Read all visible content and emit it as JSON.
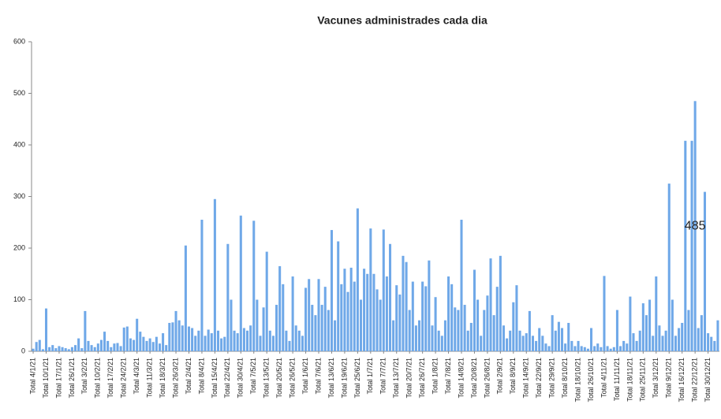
{
  "chart_data": {
    "type": "bar",
    "title": "Vacunes administrades cada dia",
    "categories": [
      "Total 4/1/21",
      null,
      null,
      null,
      "Total 10/1/21",
      null,
      null,
      null,
      "Total 17/1/21",
      null,
      null,
      null,
      "Total 26/1/21",
      null,
      null,
      null,
      "Total 3/2/21",
      null,
      null,
      null,
      "Total 10/2/21",
      null,
      null,
      null,
      "Total 17/2/21",
      null,
      null,
      null,
      "Total 24/2/21",
      null,
      null,
      null,
      "Total 4/3/21",
      null,
      null,
      null,
      "Total 11/3/21",
      null,
      null,
      null,
      "Total 18/3/21",
      null,
      null,
      null,
      "Total 26/3/21",
      null,
      null,
      null,
      "Total 2/4/21",
      null,
      null,
      null,
      "Total 8/4/21",
      null,
      null,
      null,
      "Total 15/4/21",
      null,
      null,
      null,
      "Total 22/4/21",
      null,
      null,
      null,
      "Total 30/4/21",
      null,
      null,
      null,
      "Total 7/5/21",
      null,
      null,
      null,
      "Total 13/5/21",
      null,
      null,
      null,
      "Total 20/5/21",
      null,
      null,
      null,
      "Total 26/5/21",
      null,
      null,
      null,
      "Total 1/6/21",
      null,
      null,
      null,
      "Total 7/6/21",
      null,
      null,
      null,
      "Total 13/6/21",
      null,
      null,
      null,
      "Total 19/6/21",
      null,
      null,
      null,
      "Total 25/6/21",
      null,
      null,
      null,
      "Total 1/7/21",
      null,
      null,
      null,
      "Total 7/7/21",
      null,
      null,
      null,
      "Total 13/7/21",
      null,
      null,
      null,
      "Total 20/7/21",
      null,
      null,
      null,
      "Total 26/7/21",
      null,
      null,
      null,
      "Total 1/8/21",
      null,
      null,
      null,
      "Total 7/8/21",
      null,
      null,
      null,
      "Total 14/8/21",
      null,
      null,
      null,
      "Total 20/8/21",
      null,
      null,
      null,
      "Total 26/8/21",
      null,
      null,
      null,
      "Total 2/9/21",
      null,
      null,
      null,
      "Total 8/9/21",
      null,
      null,
      null,
      "Total 14/9/21",
      null,
      null,
      null,
      "Total 22/9/21",
      null,
      null,
      null,
      "Total 29/9/21",
      null,
      null,
      null,
      "Total 8/10/21",
      null,
      null,
      null,
      "Total 18/10/21",
      null,
      null,
      null,
      "Total 26/10/21",
      null,
      null,
      null,
      "Total 4/11/21",
      null,
      null,
      null,
      "Total 11/11/21",
      null,
      null,
      null,
      "Total 18/11/21",
      null,
      null,
      null,
      "Total 25/11/21",
      null,
      null,
      null,
      "Total 3/12/21",
      null,
      null,
      null,
      "Total 9/12/21",
      null,
      null,
      null,
      "Total 16/12/21",
      null,
      null,
      null,
      "Total 22/12/21",
      null,
      null,
      null,
      "Total 30/12/21",
      null,
      null,
      null
    ],
    "values": [
      5,
      18,
      22,
      4,
      83,
      8,
      12,
      6,
      10,
      8,
      6,
      4,
      8,
      12,
      25,
      6,
      78,
      20,
      12,
      8,
      15,
      22,
      38,
      20,
      8,
      15,
      16,
      10,
      46,
      48,
      25,
      22,
      63,
      38,
      28,
      20,
      25,
      18,
      28,
      15,
      35,
      12,
      55,
      56,
      78,
      60,
      50,
      205,
      48,
      45,
      30,
      40,
      255,
      30,
      42,
      35,
      295,
      40,
      25,
      28,
      208,
      100,
      40,
      35,
      263,
      45,
      40,
      50,
      253,
      100,
      30,
      85,
      193,
      40,
      30,
      90,
      165,
      130,
      40,
      20,
      145,
      50,
      40,
      30,
      123,
      140,
      90,
      70,
      140,
      90,
      125,
      80,
      235,
      60,
      213,
      130,
      160,
      115,
      162,
      135,
      277,
      100,
      160,
      150,
      238,
      150,
      120,
      100,
      236,
      145,
      208,
      60,
      128,
      110,
      185,
      173,
      80,
      135,
      50,
      60,
      135,
      126,
      176,
      50,
      105,
      40,
      30,
      60,
      145,
      130,
      85,
      80,
      255,
      90,
      40,
      55,
      158,
      100,
      30,
      80,
      108,
      180,
      70,
      125,
      185,
      50,
      25,
      40,
      95,
      128,
      40,
      30,
      35,
      78,
      30,
      20,
      45,
      30,
      15,
      10,
      70,
      40,
      57,
      45,
      15,
      55,
      20,
      10,
      20,
      10,
      8,
      5,
      45,
      10,
      15,
      8,
      146,
      10,
      5,
      8,
      80,
      10,
      20,
      15,
      106,
      35,
      20,
      40,
      93,
      70,
      100,
      30,
      145,
      50,
      30,
      40,
      325,
      100,
      30,
      45,
      55,
      408,
      80,
      408,
      485,
      45,
      70,
      309,
      35,
      28,
      20,
      60
    ],
    "color": "#6fa8e8",
    "annotated_index": 204,
    "ylim": [
      0,
      600
    ],
    "yticks": [
      0,
      100,
      200,
      300,
      400,
      500,
      600
    ],
    "grid": false
  }
}
